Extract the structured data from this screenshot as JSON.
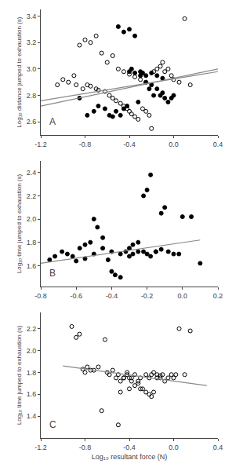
{
  "chart_data": [
    {
      "type": "scatter",
      "ylabel": "Log₁₀ distance jumped to exhaustion (s)",
      "annotations": [
        {
          "text": "A"
        }
      ],
      "xlim": [
        -1.2,
        0.4
      ],
      "ylim": [
        2.5,
        3.45
      ],
      "xticks": [
        -1.2,
        -0.8,
        -0.4,
        {
          "value": 0.0,
          "label": "0.0"
        },
        0.4
      ],
      "yticks": [
        2.6,
        2.8,
        {
          "value": 3.0,
          "label": "3.0"
        },
        3.2,
        3.4
      ],
      "grid": false,
      "series": [
        {
          "type": "scatter",
          "marker": "circle",
          "color": "black",
          "x": [
            -0.85,
            -0.78,
            -0.72,
            -0.68,
            -0.62,
            -0.58,
            -0.55,
            -0.52,
            -0.48,
            -0.45,
            -0.42,
            -0.4,
            -0.38,
            -0.35,
            -0.32,
            -0.3,
            -0.28,
            -0.25,
            -0.22,
            -0.2,
            -0.18,
            -0.15,
            -0.12,
            -0.1,
            -0.08,
            -0.05,
            -0.02,
            0.0,
            -0.5,
            -0.45,
            -0.4,
            -0.35,
            -0.3,
            -0.25,
            -0.2,
            -0.15,
            -0.1
          ],
          "values": [
            2.78,
            2.65,
            2.68,
            2.72,
            2.7,
            2.65,
            2.64,
            2.68,
            2.65,
            2.7,
            2.72,
            2.98,
            3.0,
            2.97,
            2.75,
            2.95,
            2.97,
            2.9,
            2.85,
            2.88,
            2.8,
            2.85,
            2.8,
            2.82,
            2.78,
            2.75,
            2.78,
            2.8,
            3.32,
            3.28,
            3.3,
            3.25,
            2.98,
            2.95,
            2.97,
            2.95,
            2.93
          ]
        },
        {
          "type": "scatter",
          "marker": "circle-open",
          "color": "black",
          "x": [
            -1.05,
            -1.0,
            -0.95,
            -0.9,
            -0.88,
            -0.82,
            -0.78,
            -0.75,
            -0.7,
            -0.68,
            -0.62,
            -0.58,
            -0.55,
            -0.52,
            -0.48,
            -0.45,
            -0.42,
            -0.4,
            -0.38,
            -0.35,
            -0.32,
            -0.28,
            -0.25,
            -0.22,
            -0.18,
            -0.15,
            -0.12,
            -0.1,
            -0.08,
            -0.05,
            -0.02,
            0.0,
            0.05,
            0.1,
            0.15,
            -0.85,
            -0.8,
            -0.75,
            -0.7,
            -0.65,
            -0.6,
            -0.55,
            -0.5,
            -0.45,
            -0.4,
            -0.35,
            -0.3,
            -0.25,
            -0.2
          ],
          "values": [
            2.88,
            2.92,
            2.9,
            2.95,
            2.88,
            2.85,
            2.88,
            2.87,
            2.85,
            2.84,
            2.83,
            2.8,
            2.78,
            2.76,
            2.74,
            2.72,
            2.7,
            2.68,
            2.66,
            2.64,
            2.62,
            2.7,
            2.68,
            2.65,
            2.98,
            3.0,
            3.02,
            3.05,
            2.98,
            3.0,
            2.95,
            2.92,
            2.9,
            3.38,
            2.88,
            3.18,
            3.22,
            3.2,
            3.25,
            3.12,
            3.05,
            3.1,
            3.0,
            2.98,
            2.96,
            2.94,
            2.92,
            2.9,
            2.55
          ]
        },
        {
          "type": "line",
          "color": "#888888",
          "x": [
            -1.2,
            0.4
          ],
          "values": [
            2.72,
            3.0
          ]
        },
        {
          "type": "line",
          "color": "#888888",
          "x": [
            -1.2,
            0.4
          ],
          "values": [
            2.76,
            2.98
          ]
        }
      ]
    },
    {
      "type": "scatter",
      "ylabel": "Log₁₀ time jumped to exhaustion (s)",
      "annotations": [
        {
          "text": "B"
        }
      ],
      "xlim": [
        -0.8,
        0.2
      ],
      "ylim": [
        1.42,
        2.5
      ],
      "xticks": [
        -0.8,
        -0.6,
        -0.4,
        -0.2,
        {
          "value": 0.0,
          "label": "0.0"
        },
        0.2
      ],
      "yticks": [
        1.6,
        1.8,
        {
          "value": 2.0,
          "label": "2.0"
        },
        2.2,
        2.4
      ],
      "grid": false,
      "series": [
        {
          "type": "scatter",
          "marker": "circle",
          "color": "black",
          "x": [
            -0.75,
            -0.72,
            -0.68,
            -0.65,
            -0.62,
            -0.58,
            -0.55,
            -0.52,
            -0.5,
            -0.48,
            -0.45,
            -0.42,
            -0.4,
            -0.38,
            -0.35,
            -0.32,
            -0.3,
            -0.28,
            -0.25,
            -0.22,
            -0.2,
            -0.18,
            -0.15,
            -0.12,
            -0.1,
            -0.08,
            -0.05,
            -0.02,
            0.0,
            0.05,
            0.1,
            -0.6,
            -0.55,
            -0.5,
            -0.45,
            -0.4,
            -0.35,
            -0.3,
            -0.28,
            -0.25,
            -0.22,
            -0.2,
            -0.18,
            -0.15,
            -0.12
          ],
          "values": [
            1.65,
            1.68,
            1.72,
            1.7,
            1.68,
            1.75,
            1.78,
            1.8,
            2.0,
            1.93,
            1.84,
            1.65,
            1.55,
            1.52,
            1.5,
            1.72,
            1.75,
            1.78,
            1.8,
            1.72,
            1.7,
            1.68,
            1.72,
            2.05,
            2.1,
            1.72,
            1.7,
            1.7,
            2.02,
            2.02,
            1.62,
            1.64,
            1.66,
            1.7,
            1.75,
            1.72,
            1.7,
            1.68,
            1.7,
            1.72,
            2.2,
            2.25,
            2.38,
            1.72,
            1.74
          ]
        },
        {
          "type": "line",
          "color": "#888888",
          "x": [
            -0.8,
            0.1
          ],
          "values": [
            1.62,
            1.82
          ]
        }
      ]
    },
    {
      "type": "scatter",
      "ylabel": "Log₁₀ time jumped to exhaustion (s)",
      "xlabel": "Log₁₀ resultant force (N)",
      "annotations": [
        {
          "text": "C"
        }
      ],
      "xlim": [
        -1.2,
        0.4
      ],
      "ylim": [
        1.2,
        2.35
      ],
      "xticks": [
        -1.2,
        -0.8,
        -0.4,
        {
          "value": 0.0,
          "label": "0.0"
        },
        0.4
      ],
      "yticks": [
        1.4,
        1.6,
        1.8,
        {
          "value": 2.0,
          "label": "2.0"
        },
        2.2
      ],
      "grid": false,
      "series": [
        {
          "type": "scatter",
          "marker": "circle-open",
          "color": "black",
          "x": [
            -0.92,
            -0.88,
            -0.85,
            -0.82,
            -0.8,
            -0.78,
            -0.75,
            -0.72,
            -0.68,
            -0.65,
            -0.62,
            -0.6,
            -0.58,
            -0.55,
            -0.52,
            -0.5,
            -0.48,
            -0.45,
            -0.42,
            -0.4,
            -0.38,
            -0.35,
            -0.32,
            -0.3,
            -0.28,
            -0.25,
            -0.22,
            -0.2,
            -0.18,
            -0.15,
            -0.12,
            -0.1,
            -0.08,
            -0.05,
            -0.02,
            0.0,
            0.02,
            0.05,
            0.1,
            0.15,
            -0.5,
            -0.48,
            -0.45,
            -0.42,
            -0.4,
            -0.38,
            -0.35,
            -0.32,
            -0.3,
            -0.25,
            -0.22,
            -0.2,
            -0.18,
            -0.15,
            -0.12
          ],
          "values": [
            2.22,
            2.12,
            2.15,
            1.83,
            1.8,
            1.85,
            1.82,
            1.82,
            1.85,
            1.45,
            2.1,
            1.8,
            1.78,
            1.82,
            1.75,
            1.78,
            1.72,
            1.75,
            1.78,
            1.75,
            1.72,
            1.68,
            1.7,
            1.65,
            1.65,
            1.62,
            1.6,
            1.58,
            1.62,
            1.78,
            1.75,
            1.78,
            1.72,
            1.75,
            1.78,
            1.75,
            1.78,
            2.2,
            1.78,
            2.18,
            1.32,
            1.62,
            1.75,
            1.8,
            1.65,
            1.75,
            1.78,
            1.72,
            1.75,
            1.78,
            1.75,
            1.78,
            1.8,
            1.75,
            1.77
          ]
        },
        {
          "type": "line",
          "color": "#888888",
          "x": [
            -1.0,
            0.3
          ],
          "values": [
            1.86,
            1.68
          ]
        }
      ]
    }
  ]
}
